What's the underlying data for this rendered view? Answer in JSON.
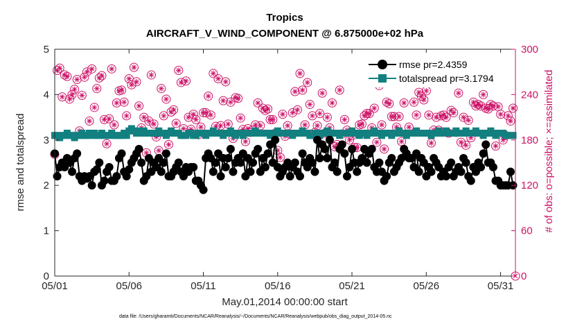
{
  "chart_data": {
    "type": "line",
    "title": "Tropics",
    "subtitle": "AIRCRAFT_V_WIND_COMPONENT @ 6.875000e+02 hPa",
    "xlabel": "May.01,2014 00:00:00 start",
    "ylabel_left": "rmse and totalspread",
    "ylabel_right": "# of obs: o=possible; ×=assimilated",
    "footnote": "data file: /Users/gharamti/Documents/NCAR/Reanalysis/~/Documents/NCAR/Reanalysis/webpub/obs_diag_output_2014-05.nc",
    "xlim": [
      0,
      31
    ],
    "ylim_left": [
      0,
      5
    ],
    "ylim_right": [
      0,
      300
    ],
    "x_ticks": [
      {
        "v": 0,
        "label": "05/01"
      },
      {
        "v": 5,
        "label": "05/06"
      },
      {
        "v": 10,
        "label": "05/11"
      },
      {
        "v": 15,
        "label": "05/16"
      },
      {
        "v": 20,
        "label": "05/21"
      },
      {
        "v": 25,
        "label": "05/26"
      },
      {
        "v": 30,
        "label": "05/31"
      }
    ],
    "y_ticks_left": [
      "0",
      "1",
      "2",
      "3",
      "4",
      "5"
    ],
    "y_ticks_right": [
      "0",
      "60",
      "120",
      "180",
      "240",
      "300"
    ],
    "legend": {
      "position": "top-right",
      "entries": [
        "rmse pr=2.4359",
        "totalspread pr=3.1794"
      ]
    },
    "colors": {
      "rmse": "#000000",
      "totalspread": "#138080",
      "obs": "#cc1166",
      "axis_right": "#cc1166"
    },
    "series": [
      {
        "name": "rmse",
        "axis": "left",
        "values": [
          2.7,
          2.2,
          2.4,
          2.5,
          2.4,
          2.6,
          2.5,
          2.3,
          2.6,
          2.7,
          2.2,
          2.1,
          2.2,
          2.15,
          2.2,
          2.0,
          2.3,
          2.35,
          2.5,
          2.0,
          2.1,
          2.3,
          2.4,
          2.1,
          2.1,
          2.2,
          2.6,
          2.7,
          2.3,
          2.2,
          2.35,
          2.5,
          2.6,
          2.7,
          2.8,
          2.5,
          2.1,
          2.2,
          2.6,
          2.3,
          2.5,
          2.4,
          2.6,
          2.3,
          2.5,
          2.7,
          2.2,
          2.2,
          2.3,
          2.4,
          2.5,
          2.3,
          2.2,
          2.4,
          2.3,
          2.4,
          2.4,
          2.1,
          2.1,
          2.0,
          1.9,
          2.6,
          2.7,
          2.6,
          2.3,
          2.5,
          2.7,
          2.2,
          2.6,
          2.4,
          2.6,
          2.8,
          2.3,
          2.5,
          2.6,
          2.5,
          2.7,
          2.2,
          2.6,
          2.3,
          2.5,
          2.7,
          2.8,
          2.3,
          2.6,
          2.4,
          2.7,
          2.9,
          2.5,
          3.0,
          2.4,
          2.2,
          2.3,
          2.4,
          2.5,
          2.2,
          2.4,
          2.5,
          2.3,
          2.2,
          2.7,
          2.5,
          2.4,
          2.6,
          2.5,
          2.3,
          3.0,
          2.6,
          2.9,
          2.8,
          2.6,
          3.0,
          2.4,
          2.5,
          2.3,
          2.8,
          2.9,
          2.7,
          2.2,
          2.4,
          2.8,
          2.5,
          2.3,
          2.5,
          2.6,
          2.8,
          2.5,
          2.7,
          2.8,
          2.4,
          2.3,
          2.5,
          2.3,
          2.1,
          2.2,
          2.5,
          2.6,
          2.3,
          2.4,
          2.5,
          2.6,
          2.8,
          2.7,
          2.6,
          2.6,
          2.4,
          2.7,
          2.3,
          2.6,
          2.5,
          2.2,
          2.4,
          2.3,
          2.6,
          2.5,
          2.4,
          2.2,
          2.3,
          2.2,
          2.4,
          2.5,
          2.2,
          2.3,
          2.4,
          2.3,
          2.6,
          2.5,
          2.2,
          2.1,
          2.4,
          2.3,
          2.5,
          2.4,
          2.7,
          2.9,
          2.5,
          2.5,
          2.4,
          2.1,
          2.1,
          2.0,
          2.0,
          2.0,
          2.0,
          2.3,
          2.0,
          2.5,
          2.0,
          2.3,
          2.0,
          2.4,
          2.0
        ],
        "x_step": 0.1667
      },
      {
        "name": "totalspread",
        "axis": "left",
        "values": [
          3.1,
          3.1,
          3.05,
          3.1,
          3.1,
          3.15,
          3.1,
          3.1,
          3.05,
          3.1,
          3.1,
          3.15,
          3.1,
          3.1,
          3.15,
          3.1,
          3.15,
          3.1,
          3.1,
          3.15,
          3.1,
          3.1,
          3.1,
          3.15,
          3.1,
          3.1,
          3.1,
          3.1,
          3.15,
          3.1,
          3.2,
          3.25,
          3.2,
          3.15,
          3.2,
          3.15,
          3.2,
          3.15,
          3.15,
          3.15,
          3.15,
          3.15,
          3.2,
          3.15,
          3.15,
          3.1,
          3.15,
          3.2,
          3.15,
          3.15,
          3.15,
          3.1,
          3.1,
          3.1,
          3.15,
          3.15,
          3.1,
          3.1,
          3.15,
          3.15,
          3.15,
          3.1,
          3.15,
          3.15,
          3.2,
          3.15,
          3.15,
          3.15,
          3.1,
          3.15,
          3.15,
          3.2,
          3.15,
          3.1,
          3.15,
          3.15,
          3.1,
          3.15,
          3.15,
          3.15,
          3.15,
          3.2,
          3.15,
          3.15,
          3.15,
          3.15,
          3.15,
          3.1,
          3.15,
          3.15,
          3.2,
          3.15,
          3.15,
          3.15,
          3.15,
          3.15,
          3.1,
          3.15,
          3.15,
          3.15,
          3.2,
          3.15,
          3.15,
          3.1,
          3.1,
          3.15,
          3.15,
          3.1,
          3.15,
          3.15,
          3.2,
          3.15,
          3.15,
          3.15,
          3.15,
          3.1,
          3.15,
          3.15,
          3.15,
          3.15,
          3.2,
          3.15,
          3.15,
          3.1,
          3.15,
          3.15,
          3.1,
          3.15,
          3.15,
          3.2,
          3.15,
          3.15,
          3.1,
          3.15,
          3.15,
          3.15,
          3.1,
          3.15,
          3.15,
          3.2,
          3.15,
          3.15,
          3.1,
          3.15,
          3.15,
          3.15,
          3.2,
          3.15,
          3.15,
          3.15,
          3.15,
          3.15,
          3.1,
          3.15,
          3.15,
          3.2,
          3.15,
          3.15,
          3.2,
          3.15,
          3.15,
          3.15,
          3.2,
          3.15,
          3.15,
          3.15,
          3.2,
          3.15,
          3.15,
          3.15,
          3.2,
          3.15,
          3.15,
          3.1,
          3.15,
          3.15,
          3.2,
          3.15,
          3.1,
          3.15,
          3.15,
          3.15,
          3.1,
          3.1,
          3.1,
          3.1
        ],
        "x_step": 0.1667
      },
      {
        "name": "obs_possible",
        "axis": "right",
        "values": [
          161,
          272,
          275,
          237,
          266,
          264,
          234,
          240,
          247,
          260,
          192,
          239,
          263,
          270,
          205,
          274,
          223,
          248,
          262,
          265,
          207,
          175,
          208,
          274,
          200,
          229,
          245,
          246,
          230,
          212,
          261,
          253,
          276,
          257,
          225,
          196,
          210,
          163,
          205,
          266,
          201,
          184,
          166,
          248,
          212,
          234,
          174,
          217,
          220,
          202,
          272,
          256,
          195,
          258,
          210,
          194,
          214,
          207,
          187,
          197,
          216,
          216,
          238,
          213,
          268,
          198,
          261,
          199,
          232,
          257,
          201,
          230,
          182,
          236,
          235,
          209,
          194,
          178,
          195,
          190,
          193,
          200,
          229,
          199,
          222,
          219,
          221,
          207,
          207,
          189,
          166,
          157,
          214,
          185,
          199,
          188,
          216,
          244,
          220,
          268,
          246,
          200,
          256,
          227,
          212,
          190,
          199,
          215,
          242,
          189,
          210,
          196,
          229,
          171,
          174,
          246,
          188,
          207,
          193,
          180,
          186,
          170,
          170,
          200,
          201,
          212,
          215,
          215,
          196,
          222,
          177,
          252,
          200,
          168,
          230,
          228,
          211,
          211,
          197,
          211,
          178,
          229,
          262,
          197,
          256,
          230,
          213,
          243,
          238,
          233,
          245,
          213,
          176,
          193,
          210,
          193,
          212,
          213,
          210,
          189,
          219,
          216,
          190,
          242,
          177,
          210,
          173,
          206,
          183,
          230,
          225,
          227,
          225,
          240,
          222,
          221,
          227,
          225,
          172,
          224,
          214,
          180,
          186,
          212,
          205,
          222,
          207,
          203,
          199,
          200
        ],
        "x_step": 0.1667
      }
    ]
  }
}
